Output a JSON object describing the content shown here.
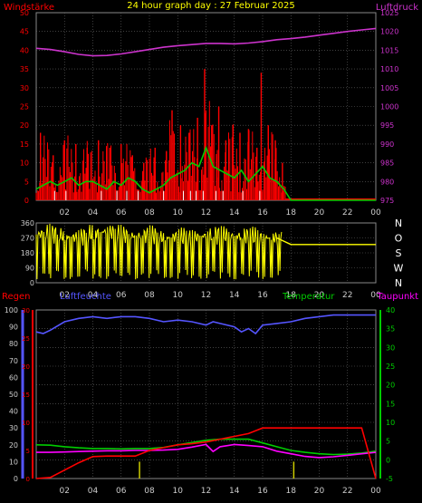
{
  "header": {
    "title": "24 hour graph day : 27 Februar 2025"
  },
  "colors": {
    "wind": "#ff0000",
    "gust": "#ff0000",
    "wind_avg": "#00cc00",
    "wind_min": "#ffffff",
    "pressure": "#cc33cc",
    "direction": "#ffff00",
    "humidity": "#5555ff",
    "temperature": "#00cc00",
    "dewpoint": "#ff00ff",
    "rain": "#ff0000",
    "rain_rate": "#cccc00",
    "grid": "#666666",
    "axis_text": "#cccccc"
  },
  "x_ticks": [
    "02",
    "04",
    "06",
    "08",
    "10",
    "12",
    "14",
    "16",
    "18",
    "20",
    "22",
    "00"
  ],
  "chart_data": [
    {
      "id": "wind-pressure",
      "type": "line",
      "title": "",
      "left_label": "Windstärke",
      "right_label": "Luftdruck",
      "left_ticks": [
        "0",
        "5",
        "10",
        "15",
        "20",
        "25",
        "30",
        "35",
        "40",
        "45",
        "50"
      ],
      "right_ticks": [
        "975",
        "980",
        "985",
        "990",
        "995",
        "1000",
        "1005",
        "1010",
        "1015",
        "1020",
        "1025"
      ],
      "ylim_left": [
        0,
        50
      ],
      "ylim_right": [
        975,
        1025
      ],
      "pressure": {
        "x": [
          0,
          1,
          2,
          3,
          4,
          5,
          6,
          7,
          8,
          9,
          10,
          11,
          12,
          13,
          14,
          15,
          16,
          17,
          18,
          19,
          20,
          21,
          22,
          23,
          24
        ],
        "y": [
          1015.5,
          1015.2,
          1014.6,
          1013.9,
          1013.5,
          1013.6,
          1014.0,
          1014.6,
          1015.2,
          1015.8,
          1016.2,
          1016.5,
          1016.8,
          1016.8,
          1016.7,
          1016.9,
          1017.3,
          1017.8,
          1018.1,
          1018.5,
          1019.0,
          1019.5,
          1020.0,
          1020.4,
          1020.8
        ]
      },
      "wind_avg": {
        "x": [
          0,
          0.5,
          1,
          1.5,
          2,
          2.5,
          3,
          3.5,
          4,
          4.5,
          5,
          5.5,
          6,
          6.5,
          7,
          7.5,
          8,
          8.5,
          9,
          9.5,
          10,
          10.5,
          11,
          11.5,
          12,
          12.5,
          13,
          13.5,
          14,
          14.5,
          15,
          15.5,
          16,
          16.5,
          17,
          17.5,
          18,
          19,
          20,
          21,
          22,
          23,
          24
        ],
        "y": [
          3,
          4,
          5,
          4,
          5,
          6,
          4,
          5,
          5,
          4,
          3,
          5,
          4,
          6,
          5,
          3,
          2,
          3,
          4,
          6,
          7,
          8,
          10,
          9,
          14,
          9,
          8,
          7,
          6,
          8,
          5,
          7,
          9,
          6,
          5,
          3,
          0,
          0,
          0,
          0,
          0,
          0,
          0
        ]
      },
      "gust_peaks": {
        "x": [
          0.3,
          1.2,
          2.0,
          2.8,
          3.6,
          4.4,
          5.2,
          6.0,
          6.8,
          7.6,
          8.4,
          9.2,
          9.6,
          10.2,
          10.8,
          11.4,
          11.9,
          12.4,
          12.9,
          13.4,
          13.9,
          14.4,
          15.0,
          15.6,
          15.9,
          16.4,
          16.9,
          17.4
        ],
        "y": [
          18,
          12,
          16,
          15,
          14,
          16,
          14,
          15,
          12,
          10,
          14,
          13,
          24,
          20,
          18,
          22,
          35,
          20,
          25,
          16,
          20,
          18,
          19,
          14,
          34,
          20,
          16,
          10
        ]
      }
    },
    {
      "id": "direction",
      "type": "line",
      "title": "",
      "left_ticks": [
        "0",
        "90",
        "180",
        "270",
        "360"
      ],
      "right_ticks": [
        "N",
        "W",
        "S",
        "O",
        "N"
      ],
      "ylim": [
        0,
        360
      ],
      "direction": {
        "x": [
          0,
          1,
          2,
          3,
          4,
          5,
          6,
          7,
          8,
          9,
          10,
          11,
          12,
          13,
          14,
          15,
          16,
          17,
          18,
          19,
          20,
          21,
          22,
          23,
          24
        ],
        "y": [
          290,
          300,
          280,
          270,
          300,
          310,
          290,
          280,
          290,
          270,
          280,
          270,
          285,
          290,
          280,
          285,
          270,
          270,
          230,
          230,
          230,
          230,
          230,
          230,
          230
        ]
      }
    },
    {
      "id": "temp-hum-rain",
      "type": "line",
      "title": "",
      "labels": {
        "rain": "Regen",
        "humidity": "Luftfeuchte",
        "temperature": "Temperatur",
        "dewpoint": "Taupunkt"
      },
      "humidity_ticks": [
        "0",
        "10",
        "20",
        "30",
        "40",
        "50",
        "60",
        "70",
        "80",
        "90",
        "100"
      ],
      "rain_ticks": [
        "0",
        "5",
        "10",
        "15",
        "20",
        "25",
        "30"
      ],
      "temp_ticks": [
        "-5",
        "0",
        "5",
        "10",
        "15",
        "20",
        "25",
        "30",
        "35",
        "40"
      ],
      "ylim_humidity": [
        0,
        100
      ],
      "ylim_rain": [
        0,
        30
      ],
      "ylim_temp": [
        -5,
        40
      ],
      "humidity": {
        "x": [
          0,
          0.5,
          1,
          2,
          3,
          4,
          5,
          6,
          7,
          8,
          9,
          10,
          11,
          12,
          12.5,
          13,
          14,
          14.5,
          15,
          15.5,
          16,
          17,
          18,
          19,
          20,
          21,
          22,
          23,
          24
        ],
        "y": [
          87,
          86,
          88,
          93,
          95,
          96,
          95,
          96,
          96,
          95,
          93,
          94,
          93,
          91,
          93,
          92,
          90,
          87,
          89,
          86,
          91,
          92,
          93,
          95,
          96,
          97,
          97,
          97,
          97
        ]
      },
      "temperature": {
        "x": [
          0,
          1,
          2,
          3,
          4,
          5,
          6,
          7,
          8,
          9,
          10,
          11,
          12,
          13,
          14,
          15,
          16,
          17,
          18,
          19,
          20,
          21,
          22,
          23,
          24
        ],
        "y": [
          4.0,
          3.9,
          3.5,
          3.2,
          3.0,
          3.0,
          2.9,
          3.0,
          3.0,
          3.3,
          4.0,
          4.6,
          5.2,
          5.5,
          5.5,
          5.5,
          4.5,
          3.5,
          2.5,
          2.0,
          1.6,
          1.4,
          1.5,
          1.8,
          2.3
        ]
      },
      "dewpoint": {
        "x": [
          0,
          1,
          2,
          3,
          4,
          5,
          6,
          7,
          8,
          9,
          10,
          11,
          12,
          12.5,
          13,
          14,
          15,
          16,
          17,
          18,
          19,
          20,
          21,
          22,
          23,
          24
        ],
        "y": [
          2.0,
          2.0,
          2.1,
          2.2,
          2.3,
          2.4,
          2.4,
          2.5,
          2.5,
          2.6,
          2.8,
          3.4,
          4.1,
          2.2,
          3.5,
          4.1,
          3.8,
          3.5,
          2.3,
          1.6,
          0.9,
          0.6,
          0.8,
          1.2,
          1.6,
          2.0
        ]
      },
      "rain": {
        "x": [
          0,
          1,
          2,
          3,
          4,
          5,
          6,
          7,
          8,
          9,
          10,
          11,
          12,
          13,
          14,
          15,
          16,
          17,
          18,
          19,
          20,
          21,
          22,
          23,
          24
        ],
        "y": [
          0,
          0.2,
          1.5,
          2.8,
          3.9,
          4.0,
          4.0,
          4.0,
          5.0,
          5.5,
          6.0,
          6.2,
          6.5,
          7.0,
          7.5,
          8.0,
          9.0,
          9.0,
          9.0,
          9.0,
          9.0,
          9.0,
          9.0,
          9.0,
          0
        ]
      },
      "rain_rate": {
        "x": [
          7.3,
          18.2
        ],
        "y": [
          3,
          3
        ]
      }
    }
  ]
}
